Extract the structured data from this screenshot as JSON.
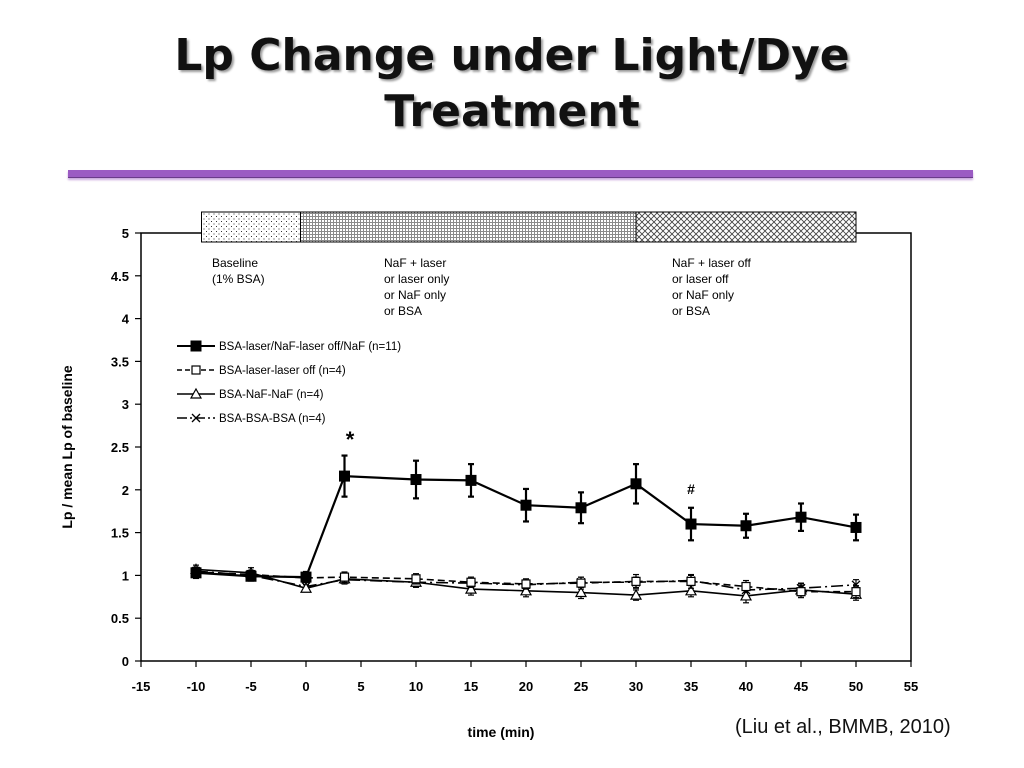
{
  "slide": {
    "title_line1": "Lp Change under Light/Dye",
    "title_line2": "Treatment",
    "citation": "(Liu et al., BMMB, 2010)"
  },
  "chart_data": {
    "type": "line",
    "xlabel": "time (min)",
    "ylabel": "Lp / mean Lp of baseline",
    "xlim": [
      -15,
      55
    ],
    "ylim": [
      0,
      5
    ],
    "x_ticks": [
      -15,
      -10,
      -5,
      0,
      5,
      10,
      15,
      20,
      25,
      30,
      35,
      40,
      45,
      50,
      55
    ],
    "y_ticks": [
      0,
      0.5,
      1,
      1.5,
      2,
      2.5,
      3,
      3.5,
      4,
      4.5,
      5
    ],
    "y_tick_labels": [
      "0",
      "0.5",
      "1",
      "1.5",
      "2",
      "2.5",
      "3",
      "3.5",
      "4",
      "4.5",
      "5"
    ],
    "grid": false,
    "legend_position": "upper-left",
    "phases": [
      {
        "label_lines": [
          "Baseline",
          "(1% BSA)"
        ],
        "x_start": -9.5,
        "x_end": -0.5,
        "pattern": "dots"
      },
      {
        "label_lines": [
          "NaF + laser",
          "or laser only",
          "or NaF only",
          "or BSA"
        ],
        "x_start": -0.5,
        "x_end": 30,
        "pattern": "fine-grid"
      },
      {
        "label_lines": [
          "NaF + laser off",
          "or laser off",
          "or NaF only",
          "or BSA"
        ],
        "x_start": 30,
        "x_end": 50,
        "pattern": "crosshatch"
      }
    ],
    "series": [
      {
        "name": "BSA-laser/NaF-laser off/NaF (n=11)",
        "marker": "square-filled",
        "line": "solid",
        "x": [
          -10,
          -5,
          0,
          3.5,
          10,
          15,
          20,
          25,
          30,
          35,
          40,
          45,
          50
        ],
        "y": [
          1.03,
          0.99,
          0.98,
          2.16,
          2.12,
          2.11,
          1.82,
          1.79,
          2.07,
          1.6,
          1.58,
          1.68,
          1.56
        ],
        "err": [
          0.06,
          0.05,
          0.06,
          0.24,
          0.22,
          0.19,
          0.19,
          0.18,
          0.23,
          0.19,
          0.14,
          0.16,
          0.15
        ]
      },
      {
        "name": "BSA-laser-laser off (n=4)",
        "marker": "square-open",
        "line": "dashed",
        "x": [
          -10,
          -5,
          0,
          3.5,
          10,
          15,
          20,
          25,
          30,
          35,
          40,
          45,
          50
        ],
        "y": [
          1.04,
          1.01,
          0.97,
          0.98,
          0.96,
          0.92,
          0.9,
          0.91,
          0.93,
          0.93,
          0.87,
          0.81,
          0.81
        ],
        "err": [
          0.05,
          0.05,
          0.05,
          0.06,
          0.06,
          0.06,
          0.06,
          0.07,
          0.08,
          0.08,
          0.07,
          0.07,
          0.07
        ]
      },
      {
        "name": "BSA-NaF-NaF (n=4)",
        "marker": "triangle-open",
        "line": "solid",
        "x": [
          -10,
          -5,
          0,
          3.5,
          10,
          15,
          20,
          25,
          30,
          35,
          40,
          45,
          50
        ],
        "y": [
          1.07,
          1.03,
          0.85,
          0.96,
          0.92,
          0.84,
          0.82,
          0.8,
          0.77,
          0.82,
          0.76,
          0.83,
          0.78
        ],
        "err": [
          0.05,
          0.06,
          0.04,
          0.06,
          0.06,
          0.07,
          0.07,
          0.07,
          0.06,
          0.07,
          0.08,
          0.07,
          0.07
        ]
      },
      {
        "name": "BSA-BSA-BSA (n=4)",
        "marker": "x",
        "line": "dash-dot",
        "x": [
          -10,
          -5,
          0,
          3.5,
          10,
          15,
          20,
          25,
          30,
          35,
          40,
          45,
          50
        ],
        "y": [
          1.05,
          1.0,
          0.87,
          0.95,
          0.92,
          0.91,
          0.89,
          0.92,
          0.92,
          0.94,
          0.83,
          0.85,
          0.89
        ],
        "err": [
          0.04,
          0.05,
          0.05,
          0.05,
          0.05,
          0.05,
          0.05,
          0.06,
          0.06,
          0.06,
          0.06,
          0.06,
          0.06
        ]
      }
    ],
    "annotations": [
      {
        "text": "*",
        "x": 4,
        "y": 2.5
      },
      {
        "text": "#",
        "x": 35,
        "y": 1.95
      }
    ]
  },
  "colors": {
    "title_rule": "#9b5bc3",
    "series": "#000000"
  }
}
